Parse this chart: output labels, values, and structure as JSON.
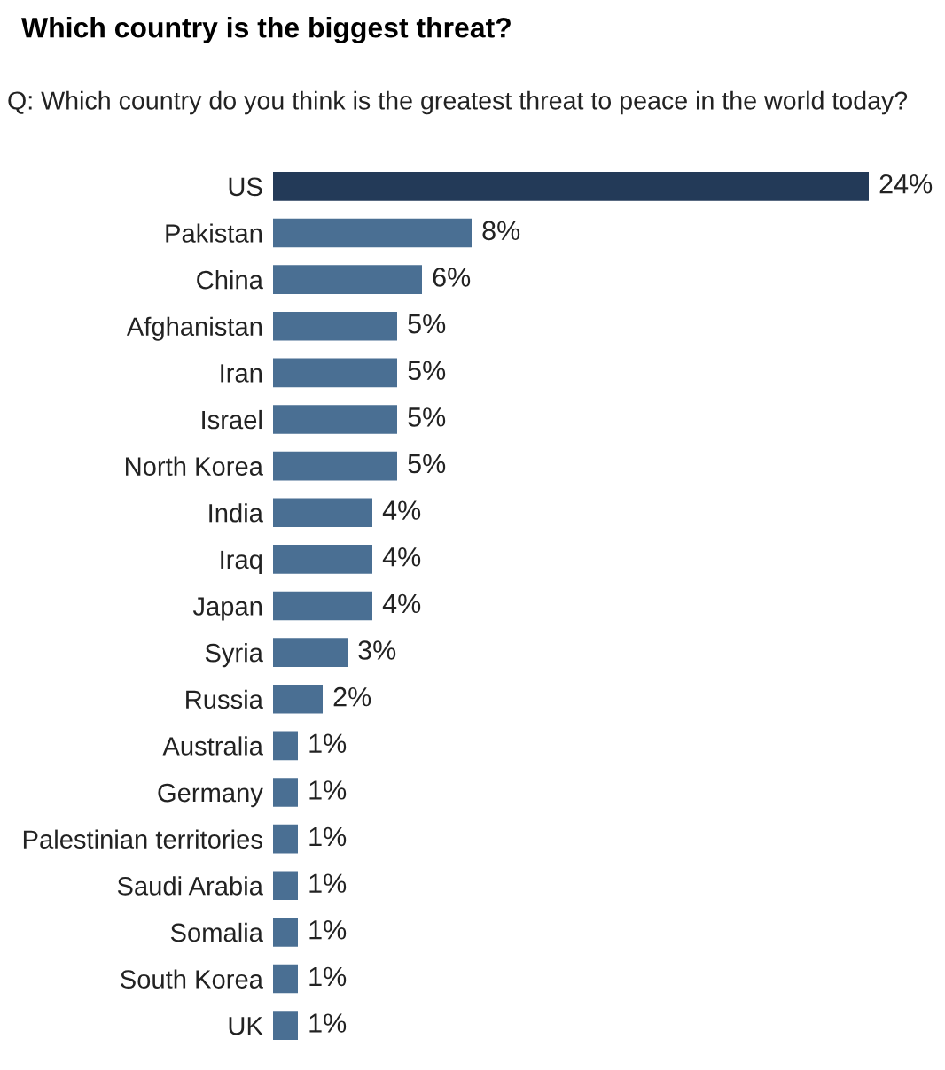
{
  "chart_data": {
    "type": "bar",
    "orientation": "horizontal",
    "title": "Which country is the biggest threat?",
    "subtitle": "Q: Which country do you think is the greatest threat to peace in the world today?",
    "categories": [
      "US",
      "Pakistan",
      "China",
      "Afghanistan",
      "Iran",
      "Israel",
      "North Korea",
      "India",
      "Iraq",
      "Japan",
      "Syria",
      "Russia",
      "Australia",
      "Germany",
      "Palestinian territories",
      "Saudi Arabia",
      "Somalia",
      "South Korea",
      "UK"
    ],
    "values": [
      24,
      8,
      6,
      5,
      5,
      5,
      5,
      4,
      4,
      4,
      3,
      2,
      1,
      1,
      1,
      1,
      1,
      1,
      1
    ],
    "value_labels": [
      "24%",
      "8%",
      "6%",
      "5%",
      "5%",
      "5%",
      "5%",
      "4%",
      "4%",
      "4%",
      "3%",
      "2%",
      "1%",
      "1%",
      "1%",
      "1%",
      "1%",
      "1%",
      "1%"
    ],
    "colors": [
      "#233a58",
      "#4a6f93",
      "#4a6f93",
      "#4a6f93",
      "#4a6f93",
      "#4a6f93",
      "#4a6f93",
      "#4a6f93",
      "#4a6f93",
      "#4a6f93",
      "#4a6f93",
      "#4a6f93",
      "#4a6f93",
      "#4a6f93",
      "#4a6f93",
      "#4a6f93",
      "#4a6f93",
      "#4a6f93",
      "#4a6f93"
    ],
    "grid": false,
    "legend": false
  }
}
